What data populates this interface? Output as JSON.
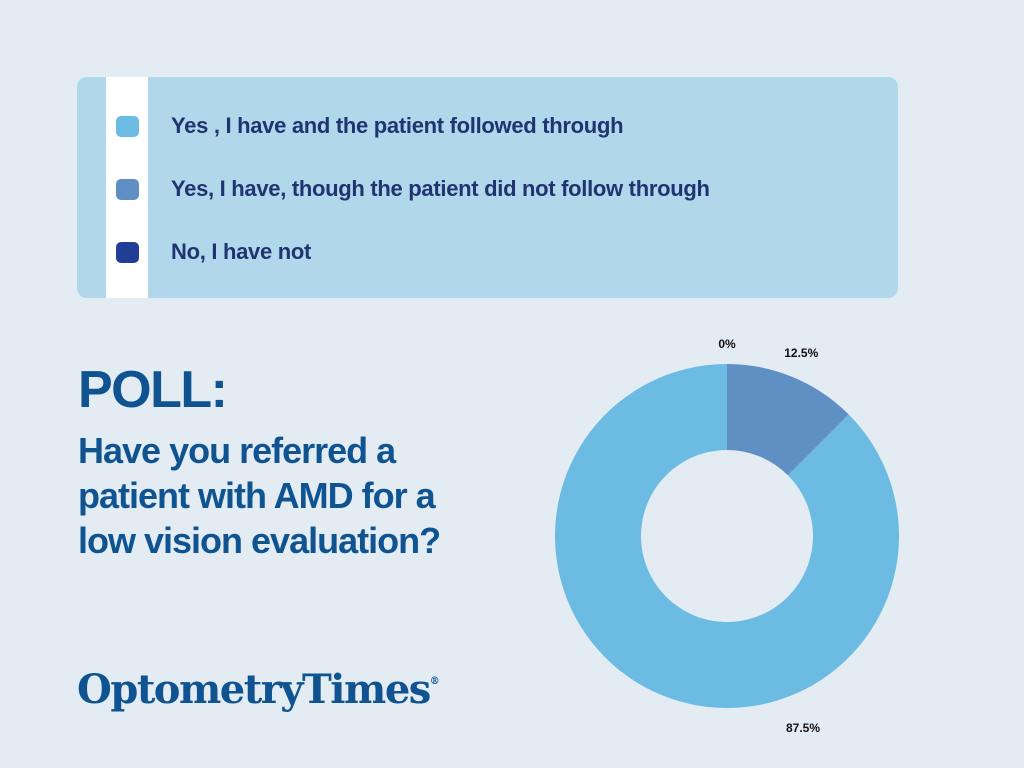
{
  "legend": {
    "items": [
      {
        "label": "Yes , I have and the patient followed through",
        "color": "#6bbbe3"
      },
      {
        "label": "Yes, I have, though the patient did not follow through",
        "color": "#5f8fc3"
      },
      {
        "label": "No, I have not",
        "color": "#223d96"
      }
    ]
  },
  "poll": {
    "heading": "POLL:",
    "question": "Have you referred a patient with AMD for a low vision evaluation?"
  },
  "brand": {
    "name": "OptometryTimes",
    "mark": "®",
    "color": "#0f5391"
  },
  "chart_data": {
    "type": "pie",
    "subtype": "donut",
    "categories": [
      "Yes , I have and the patient followed through",
      "Yes, I have, though the patient did not follow through",
      "No, I have not"
    ],
    "values": [
      87.5,
      12.5,
      0
    ],
    "labels": [
      "87.5%",
      "12.5%",
      "0%"
    ],
    "colors": [
      "#6bbbe3",
      "#5f8fc3",
      "#223d96"
    ],
    "start": "top",
    "direction": "counter-clockwise",
    "legend_position": "top"
  }
}
